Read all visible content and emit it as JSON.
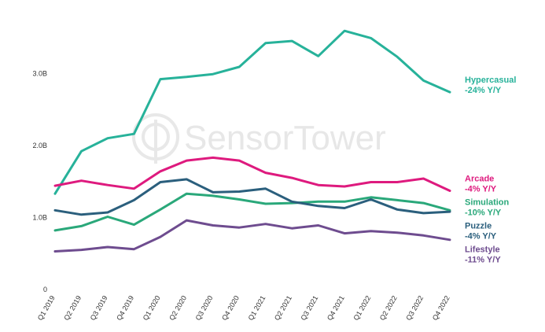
{
  "watermark": {
    "text": "SensorTower",
    "icon": "sensor-tower-logo-icon"
  },
  "chart_data": {
    "type": "line",
    "title": "",
    "xlabel": "",
    "ylabel": "",
    "categories": [
      "Q1 2019",
      "Q2 2019",
      "Q3 2019",
      "Q4 2019",
      "Q1 2020",
      "Q2 2020",
      "Q3 2020",
      "Q4 2020",
      "Q1 2021",
      "Q2 2021",
      "Q3 2021",
      "Q4 2021",
      "Q1 2022",
      "Q2 2022",
      "Q3 2022",
      "Q4 2022"
    ],
    "yticks": [
      {
        "value": 0,
        "label": "0"
      },
      {
        "value": 1000000000,
        "label": "1.0B"
      },
      {
        "value": 2000000000,
        "label": "2.0B"
      },
      {
        "value": 3000000000,
        "label": "3.0B"
      }
    ],
    "ylim": [
      0,
      3800000000
    ],
    "grid": false,
    "legend_position": "right",
    "series": [
      {
        "name": "Hypercasual",
        "change": "-24% Y/Y",
        "color": "#27b29a",
        "values": [
          1330000000,
          1920000000,
          2100000000,
          2160000000,
          2920000000,
          2950000000,
          2990000000,
          3090000000,
          3420000000,
          3450000000,
          3240000000,
          3590000000,
          3490000000,
          3230000000,
          2900000000,
          2740000000
        ]
      },
      {
        "name": "Arcade",
        "change": "-4% Y/Y",
        "color": "#de1a7e",
        "values": [
          1440000000,
          1510000000,
          1450000000,
          1400000000,
          1640000000,
          1790000000,
          1830000000,
          1790000000,
          1620000000,
          1550000000,
          1450000000,
          1430000000,
          1490000000,
          1490000000,
          1540000000,
          1370000000
        ]
      },
      {
        "name": "Simulation",
        "change": "-10% Y/Y",
        "color": "#2aa87a",
        "values": [
          820000000,
          880000000,
          1010000000,
          900000000,
          1110000000,
          1330000000,
          1300000000,
          1250000000,
          1190000000,
          1200000000,
          1220000000,
          1220000000,
          1280000000,
          1240000000,
          1200000000,
          1100000000
        ]
      },
      {
        "name": "Puzzle",
        "change": "-4% Y/Y",
        "color": "#2b5f7d",
        "values": [
          1100000000,
          1040000000,
          1070000000,
          1240000000,
          1490000000,
          1530000000,
          1350000000,
          1360000000,
          1400000000,
          1220000000,
          1160000000,
          1130000000,
          1250000000,
          1110000000,
          1060000000,
          1080000000
        ]
      },
      {
        "name": "Lifestyle",
        "change": "-11% Y/Y",
        "color": "#6e4c8f",
        "values": [
          530000000,
          550000000,
          590000000,
          560000000,
          730000000,
          960000000,
          890000000,
          860000000,
          910000000,
          850000000,
          890000000,
          780000000,
          810000000,
          790000000,
          750000000,
          690000000
        ]
      }
    ]
  }
}
